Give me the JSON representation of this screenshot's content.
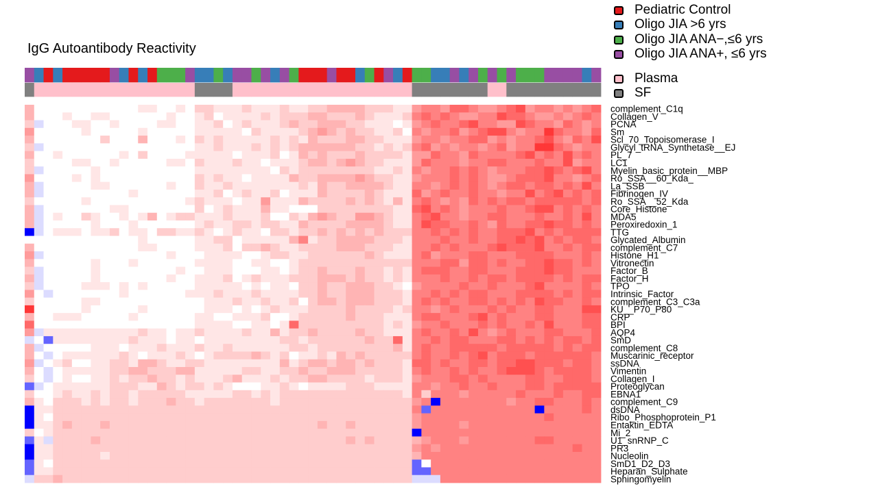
{
  "chart_data": {
    "type": "heatmap",
    "title": "IgG Autoantibody Reactivity",
    "color_scale": {
      "low": "#0000FF",
      "mid": "#FFFFFF",
      "high": "#FF0000",
      "level_codes": "A,B,C = strong/medium/light blue; 0 = white; 1-9 = increasing red"
    },
    "legend": {
      "placement": "top-right",
      "groups": [
        {
          "code": "R",
          "label": "Pediatric Control",
          "color": "#E41A1C"
        },
        {
          "code": "B",
          "label": "Oligo JIA >6 yrs",
          "color": "#377EB8"
        },
        {
          "code": "G",
          "label": "Oligo JIA ANA−,≤6 yrs",
          "color": "#4DAF4A"
        },
        {
          "code": "P",
          "label": "Oligo JIA ANA+, ≤6 yrs",
          "color": "#984EA3"
        }
      ],
      "tissues": [
        {
          "code": "P",
          "label": "Plasma",
          "color": "#FFC0CB"
        },
        {
          "code": "S",
          "label": "SF",
          "color": "#808080"
        }
      ]
    },
    "column_groups": "PBRBRRRRRPBRBRGGGPBBGBPPGPBPGRRRPRRBGRPBRGGBBPBPGPGPGGGPPPPBP",
    "column_tissue": "SPPPPPPPPPPPPPPPPPSSSSPPPPPPPPPPPPPPPPPPPSSSSSSSSPPSSSSSSSSSS",
    "rows": [
      "complement_C1q",
      "Collagen_V",
      "PCNA",
      "Sm",
      "Scl_70_Topoisomerase_I",
      "Glycyl_tRNA_Synthetase__EJ",
      "PL_7",
      "LC1",
      "Myelin_basic_protein__MBP",
      "Ro_SSA__60_Kda_",
      "La_SSB",
      "Fibrinogen_IV",
      "Ro_SSA__52_Kda",
      "Core_Histone",
      "MDA5",
      "Peroxiredoxin_1",
      "TTG",
      "Glycated_Albumin",
      "complement_C7",
      "Histone_H1",
      "Vitronectin",
      "Factor_B",
      "Factor_H",
      "TPO",
      "Intrinsic_Factor",
      "complement_C3_C3a",
      "KU__P70_P80",
      "CRP",
      "BPI",
      "AQP4",
      "SmD",
      "complement_C8",
      "Muscarinic_receptor",
      "ssDNA",
      "Vimentin",
      "Collagen_I",
      "Proteoglycan",
      "EBNA1",
      "complement_C9",
      "dsDNA",
      "Ribo_Phosphoprotein_P1",
      "Entaktin_EDTA",
      "Mi_2",
      "U1_snRNP_C",
      "PR3",
      "Nucleolin",
      "SmD1_D2_D3",
      "Heparan_Sulphate",
      "Sphingomyelin"
    ],
    "matrix": [
      "3|00000 00000 01100 10|22111 21112 11223 33322 211|45546 65445 67455 45456",
      "3|00010 01100 00001 00|12011 11212 22332 22321 112|56565 44557 66544 54565",
      "2|C0001 10010 00011 00|11201 21112 32233 32211 101|45655 67554 47655 46545",
      "4|00000 10000 01000 00|11111 02111 12343 23221 120|54556 45677 54558 65546",
      "3|00000 00200 03000 10|21211 11121 21322 23322 111|45545 56645 45567 54657",
      "2|C0000 00000 00000 00|11211 12121 23333 33221 212|56454 55456 45588 65455",
      "3|00100 00001 02000 01|11110 11120 13232 22322 221|44655 46555 56756 57565",
      "2|00001 10010 00001 10|21112 11011 12332 34322 111|46555 45566 55565 57455",
      "2|C0000 01000 00000 00|11111 11102 12222 22221 121|54556 56545 55667 65675",
      "4|00001 01000 00000 00|21211 01111 32233 33432 211|45556 56544 56667 55456",
      "3|C0000 01100 00001 00|21121 11111 12132 23333 211|55456 56545 66566 56575",
      "3|C0000 00000 10000 00|11201 21120 11132 22232 111|64565 56554 55756 75656",
      "2|00000 10000 00000 01|21110 11411 13222 23232 131|56545 46565 66566 66656",
      "3|C0000 00011 00000 00|20121 11311 00022 22222 211|67565 45556 55677 56565",
      "3|C0100 21001 01301 22|11121 11200 21343 22443 211|56755 45566 55565 56575",
      "3|C0000 01000 10000 00|12112 21221 13222 23333 211|57665 56546 55667 66565",
      "A|C0111 01120 11022 11|21012 11022 12232 32323 222|55656 56556 66756 56666",
      "0|00000 00000 01000 00|11220 11111 35122 33332 221|55565 56556 67675 65665",
      "3|00000 00000 01100 00|11120 22321 12222 33322 211|55656 55567 66675 56566",
      "4|C0000 00000 00001 00|01111 00122 11222 22232 111|56455 56655 56666 55565",
      "3|00000 01000 10000 00|11110 01100 12222 22222 222|55566 46656 55667 66565",
      "2|C0000 01000 00000 10|01110 00110 12232 22322 121|56665 56655 56667 66555",
      "3|C0000 01000 00001 00|11120 12111 22233 32322 121|55565 56566 56666 56566",
      "2|C0000 11101 01000 00|11111 01011 02232 23332 210|45555 65565 55675 55565",
      "4|0C000 00001 00000 01|11211 12111 12232 23332 221|55656 56655 56666 56566",
      "2|00000 11000 00000 00|01112 11211 20233 23332 221|56565 56656 56576 65565",
      "8|00000 10000 01000 00|01110 10121 11222 23222 212|55456 55565 65566 55577",
      "3|00111 00000 10000 00|11001 11200 12222 23222 111|56655 56756 55566 55566",
      "6|00000 00000 00000 00|11110 01101 62222 22222 121|45565 55656 55657 55566",
      "4|C1111 11111 12110 11|21111 21131 22322 22322 111|56556 57545 65556 65556",
      "C|0B111 11111 21110 11|01111 11112 21222 22232 261|55656 65556 65656 56656",
      "3|C0000 01110 11121 11|21121 11111 22122 22222 231|56556 66665 66666 56566",
      "3|0C011 11112 10111 21|01222 23212 01121 32322 222|56556 56756 66566 66665",
      "4|C0120 01122 13321 12|21111 11113 12332 33232 221|66565 56656 67766 65665",
      "3|0C011 11122 33222 33|11111 22112 23223 33222 221|56556 56556 77765 66665",
      "2|0C010 01121 22322 12|11123 11121 22332 22212 221|45556 65655 55665 56665",
      "B|C0111 11122 21132 12|21210 00112 10111 12221 111|55455 65565 55665 66666",
      "2|00121 12122 12222 21|11112 21212 22222 22222 221|52555 45555 56555 65566",
      "3|10222 12122 12223 22|12222 22212 22222 22222 222|45A55 55555 45566 55565",
      "A|11222 22222 22222 22|22222 22222 22222 22222 222|5B555 55555 555A5 55565",
      "A|10222 22222 22222 22|22222 22222 22222 22222 222|45555 55555 55556 55555",
      "A|11232 22322 22222 22|22222 22222 22232 23222 222|45555 45555 55555 55555",
      "2|01222 22222 22222 22|22222 22222 22222 22222 222|A5555 55555 55555 55555",
      "B|1C222 23222 22222 22|22222 22222 22222 23232 222|34555 45555 55566 55555",
      "A|11222 22222 22222 22|22222 22222 22222 22222 222|45455 55555 55555 55655",
      "A|11222 22122 22222 22|22222 22222 22222 22222 222|35555 55555 55555 55555",
      "B|10222 22222 22222 22|22222 22222 22222 22222 222|B0555 55555 55555 55555",
      "B|11222 22222 22222 22|22222 22222 22222 22222 222|BB555 55555 55555 55555",
      "C|22322 22222 22222 22|22222 22222 22222 22222 222|CCC55 55555 55555 55555"
    ]
  }
}
